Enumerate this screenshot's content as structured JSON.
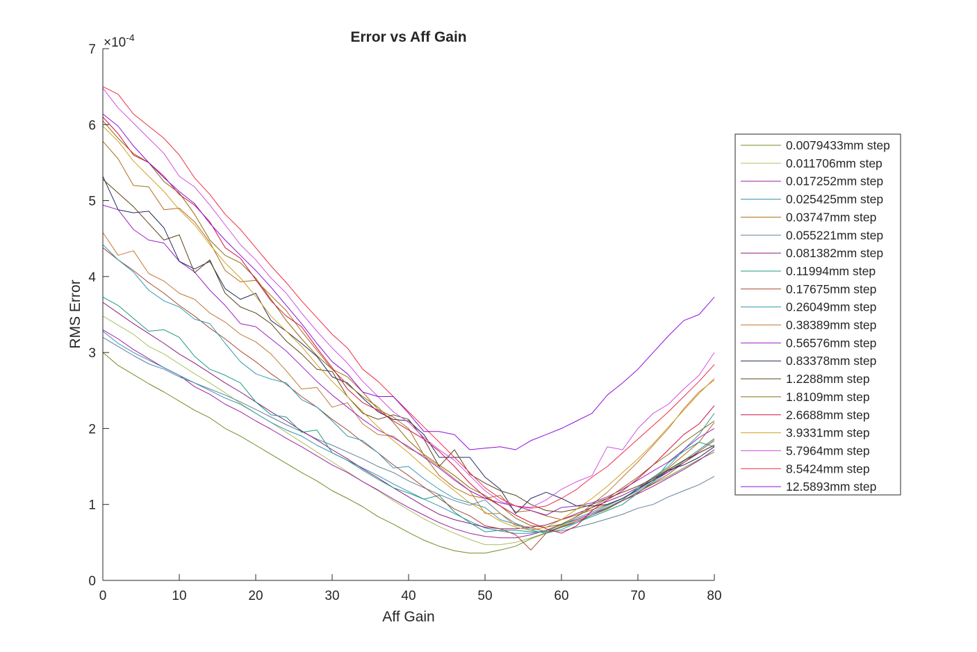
{
  "chart_data": {
    "type": "line",
    "title": "Error vs Aff Gain",
    "xlabel": "Aff Gain",
    "ylabel": "RMS Error",
    "y_exponent_label": "×10",
    "y_exponent": "-4",
    "xlim": [
      0,
      80
    ],
    "ylim": [
      0,
      7
    ],
    "xticks": [
      0,
      10,
      20,
      30,
      40,
      50,
      60,
      70,
      80
    ],
    "yticks": [
      0,
      1,
      2,
      3,
      4,
      5,
      6,
      7
    ],
    "y_scale_factor": 0.0001,
    "grid": false,
    "legend_position": "outside-right",
    "x": [
      0,
      2,
      4,
      6,
      8,
      10,
      12,
      14,
      16,
      18,
      20,
      22,
      24,
      26,
      28,
      30,
      32,
      34,
      36,
      38,
      40,
      42,
      44,
      46,
      48,
      50,
      52,
      54,
      56,
      58,
      60,
      62,
      64,
      66,
      68,
      70,
      72,
      74,
      76,
      78,
      80
    ],
    "series": [
      {
        "name": "0.0079433mm step",
        "color": "#6b8e23",
        "values": [
          3.0,
          2.83,
          2.71,
          2.59,
          2.48,
          2.36,
          2.24,
          2.14,
          2.0,
          1.9,
          1.78,
          1.66,
          1.54,
          1.42,
          1.31,
          1.18,
          1.08,
          0.97,
          0.84,
          0.74,
          0.63,
          0.53,
          0.45,
          0.39,
          0.36,
          0.36,
          0.4,
          0.45,
          0.55,
          0.62,
          0.71,
          0.78,
          0.86,
          0.95,
          1.05,
          1.16,
          1.27,
          1.37,
          1.48,
          1.59,
          1.69
        ]
      },
      {
        "name": "0.011706mm step",
        "color": "#a8c060",
        "values": [
          3.48,
          3.36,
          3.24,
          3.08,
          2.98,
          2.85,
          2.72,
          2.6,
          2.47,
          2.33,
          2.2,
          2.08,
          1.95,
          1.82,
          1.69,
          1.56,
          1.43,
          1.3,
          1.18,
          1.05,
          0.93,
          0.81,
          0.71,
          0.62,
          0.54,
          0.47,
          0.47,
          0.5,
          0.56,
          0.63,
          0.72,
          0.8,
          0.88,
          0.98,
          1.08,
          1.2,
          1.32,
          1.45,
          1.58,
          1.72,
          1.87
        ]
      },
      {
        "name": "0.017252mm step",
        "color": "#a020a0",
        "values": [
          3.3,
          3.18,
          3.04,
          2.92,
          2.8,
          2.7,
          2.55,
          2.45,
          2.32,
          2.22,
          2.1,
          1.99,
          1.87,
          1.76,
          1.64,
          1.52,
          1.42,
          1.3,
          1.19,
          1.07,
          0.96,
          0.86,
          0.76,
          0.68,
          0.62,
          0.58,
          0.56,
          0.56,
          0.6,
          0.66,
          0.74,
          0.8,
          0.88,
          0.96,
          1.05,
          1.14,
          1.24,
          1.35,
          1.46,
          1.58,
          1.72
        ]
      },
      {
        "name": "0.025425mm step",
        "color": "#3a8fb8",
        "values": [
          3.28,
          3.12,
          3.0,
          2.9,
          2.8,
          2.7,
          2.6,
          2.5,
          2.4,
          2.32,
          2.2,
          2.08,
          1.98,
          1.9,
          1.78,
          1.68,
          1.58,
          1.48,
          1.38,
          1.27,
          1.17,
          1.07,
          0.98,
          0.88,
          0.78,
          0.69,
          0.65,
          0.62,
          0.62,
          0.66,
          0.73,
          0.82,
          0.9,
          0.99,
          1.08,
          1.18,
          1.3,
          1.43,
          1.57,
          1.72,
          1.86
        ]
      },
      {
        "name": "0.03747mm step",
        "color": "#b06a1c",
        "values": [
          5.78,
          5.55,
          5.2,
          5.18,
          4.88,
          4.9,
          4.72,
          4.45,
          4.08,
          3.93,
          3.95,
          3.75,
          3.55,
          3.28,
          3.03,
          2.78,
          2.68,
          2.48,
          2.25,
          2.15,
          2.0,
          1.65,
          1.38,
          1.22,
          1.12,
          1.08,
          1.12,
          0.9,
          0.92,
          0.85,
          0.8,
          0.86,
          0.93,
          1.0,
          1.08,
          1.2,
          1.35,
          1.48,
          1.65,
          1.82,
          2.08
        ]
      },
      {
        "name": "0.055221mm step",
        "color": "#60809c",
        "values": [
          3.2,
          3.08,
          2.96,
          2.85,
          2.78,
          2.68,
          2.6,
          2.52,
          2.44,
          2.35,
          2.25,
          2.15,
          2.05,
          1.96,
          1.86,
          1.78,
          1.69,
          1.6,
          1.5,
          1.42,
          1.31,
          1.22,
          1.13,
          1.05,
          0.99,
          1.06,
          0.88,
          0.75,
          0.68,
          0.65,
          0.65,
          0.7,
          0.75,
          0.81,
          0.87,
          0.95,
          1.0,
          1.1,
          1.18,
          1.26,
          1.37
        ]
      },
      {
        "name": "0.081382mm step",
        "color": "#8a1a7e",
        "values": [
          3.66,
          3.52,
          3.38,
          3.25,
          3.12,
          2.98,
          2.86,
          2.73,
          2.6,
          2.48,
          2.35,
          2.22,
          2.1,
          1.97,
          1.85,
          1.72,
          1.6,
          1.47,
          1.35,
          1.22,
          1.1,
          0.98,
          0.87,
          0.8,
          0.75,
          0.7,
          0.68,
          0.68,
          0.7,
          0.73,
          0.8,
          0.88,
          0.96,
          1.04,
          1.12,
          1.22,
          1.32,
          1.43,
          1.55,
          1.68,
          1.78
        ]
      },
      {
        "name": "0.11994mm step",
        "color": "#1a9a80",
        "values": [
          3.73,
          3.62,
          3.45,
          3.28,
          3.3,
          3.2,
          2.95,
          2.78,
          2.7,
          2.6,
          2.35,
          2.18,
          2.15,
          1.95,
          1.98,
          1.68,
          1.58,
          1.45,
          1.33,
          1.22,
          1.15,
          1.07,
          1.12,
          0.9,
          0.76,
          0.64,
          0.66,
          0.66,
          0.64,
          0.64,
          0.7,
          0.76,
          0.84,
          0.92,
          1.0,
          1.15,
          1.3,
          1.55,
          1.7,
          1.82,
          1.76
        ]
      },
      {
        "name": "0.17675mm step",
        "color": "#a84830",
        "values": [
          4.38,
          4.22,
          4.08,
          3.92,
          3.78,
          3.62,
          3.48,
          3.32,
          3.18,
          3.02,
          2.88,
          2.72,
          2.58,
          2.42,
          2.28,
          2.12,
          1.98,
          1.82,
          1.68,
          1.52,
          1.38,
          1.23,
          1.08,
          0.94,
          0.85,
          0.72,
          0.68,
          0.6,
          0.4,
          0.62,
          0.7,
          0.78,
          0.86,
          0.94,
          1.05,
          1.16,
          1.28,
          1.4,
          1.55,
          1.7,
          1.84
        ]
      },
      {
        "name": "0.26049mm step",
        "color": "#309ab0",
        "values": [
          4.42,
          4.22,
          4.06,
          3.82,
          3.68,
          3.6,
          3.44,
          3.38,
          3.12,
          2.88,
          2.72,
          2.65,
          2.6,
          2.38,
          2.28,
          2.1,
          1.9,
          1.84,
          1.68,
          1.48,
          1.5,
          1.34,
          1.2,
          1.08,
          1.02,
          0.96,
          0.8,
          0.74,
          0.66,
          0.62,
          0.67,
          0.76,
          0.86,
          0.96,
          1.06,
          1.22,
          1.36,
          1.5,
          1.72,
          1.92,
          2.2
        ]
      },
      {
        "name": "0.38389mm step",
        "color": "#c07838",
        "values": [
          4.58,
          4.28,
          4.34,
          4.04,
          3.94,
          3.78,
          3.7,
          3.52,
          3.4,
          3.24,
          3.14,
          2.98,
          2.76,
          2.52,
          2.54,
          2.28,
          2.34,
          2.06,
          1.92,
          1.9,
          1.74,
          1.64,
          1.5,
          1.34,
          1.18,
          0.88,
          0.88,
          0.72,
          0.7,
          0.64,
          0.74,
          0.84,
          1.0,
          1.16,
          1.36,
          1.56,
          1.78,
          2.0,
          2.26,
          2.48,
          2.64
        ]
      },
      {
        "name": "0.56576mm step",
        "color": "#9a20c0",
        "values": [
          4.94,
          4.88,
          4.62,
          4.48,
          4.44,
          4.2,
          4.06,
          3.82,
          3.62,
          3.38,
          3.34,
          3.18,
          3.02,
          2.82,
          2.62,
          2.44,
          2.28,
          2.12,
          1.98,
          1.88,
          1.76,
          1.62,
          1.48,
          1.32,
          1.18,
          1.08,
          1.02,
          0.98,
          0.92,
          0.86,
          0.96,
          0.98,
          1.02,
          1.1,
          1.2,
          1.32,
          1.44,
          1.56,
          1.72,
          1.88,
          2.0
        ]
      },
      {
        "name": "0.83378mm step",
        "color": "#202a60",
        "values": [
          5.32,
          4.88,
          4.84,
          4.86,
          4.64,
          4.2,
          4.1,
          4.2,
          3.84,
          3.7,
          3.78,
          3.42,
          3.28,
          3.12,
          2.95,
          2.68,
          2.6,
          2.4,
          2.22,
          2.12,
          2.1,
          1.92,
          1.62,
          1.62,
          1.62,
          1.36,
          1.2,
          0.88,
          1.08,
          1.16,
          1.08,
          0.98,
          0.98,
          1.0,
          1.08,
          1.2,
          1.32,
          1.45,
          1.52,
          1.62,
          1.76
        ]
      },
      {
        "name": "1.2288mm step",
        "color": "#5a4016",
        "values": [
          5.28,
          5.1,
          4.92,
          4.7,
          4.48,
          4.55,
          4.05,
          4.22,
          3.78,
          3.6,
          3.52,
          3.38,
          3.15,
          2.98,
          2.78,
          2.75,
          2.42,
          2.2,
          2.12,
          2.18,
          2.12,
          1.86,
          1.5,
          1.72,
          1.4,
          1.28,
          1.18,
          1.12,
          1.0,
          0.92,
          0.9,
          0.94,
          1.0,
          1.08,
          1.16,
          1.24,
          1.34,
          1.46,
          1.58,
          1.68,
          1.78
        ]
      },
      {
        "name": "1.8109mm step",
        "color": "#8a6a10",
        "values": [
          6.05,
          5.82,
          5.62,
          5.5,
          5.25,
          5.1,
          4.82,
          4.48,
          4.28,
          4.18,
          3.98,
          3.7,
          3.42,
          3.18,
          2.96,
          2.78,
          2.58,
          2.42,
          2.28,
          2.08,
          1.84,
          1.66,
          1.52,
          1.38,
          1.22,
          1.12,
          0.98,
          0.82,
          0.72,
          0.7,
          0.74,
          0.84,
          0.96,
          1.08,
          1.22,
          1.36,
          1.52,
          1.66,
          1.82,
          1.96,
          2.1
        ]
      },
      {
        "name": "2.6688mm step",
        "color": "#d0103e",
        "values": [
          6.1,
          5.88,
          5.6,
          5.5,
          5.32,
          5.08,
          4.94,
          4.72,
          4.38,
          4.24,
          3.96,
          3.68,
          3.48,
          3.34,
          3.06,
          2.8,
          2.52,
          2.34,
          2.24,
          2.1,
          1.98,
          1.86,
          1.7,
          1.5,
          1.28,
          1.1,
          0.98,
          0.86,
          0.76,
          0.68,
          0.62,
          0.72,
          0.92,
          1.06,
          1.18,
          1.34,
          1.52,
          1.72,
          1.92,
          2.06,
          2.3
        ]
      },
      {
        "name": "3.9331mm step",
        "color": "#d0a020",
        "values": [
          5.98,
          5.78,
          5.52,
          5.32,
          5.12,
          4.88,
          4.68,
          4.42,
          4.18,
          3.98,
          3.74,
          3.48,
          3.28,
          3.08,
          2.84,
          2.62,
          2.42,
          2.22,
          2.02,
          1.84,
          1.68,
          1.5,
          1.34,
          1.18,
          1.02,
          0.9,
          0.78,
          0.7,
          0.66,
          0.7,
          0.8,
          0.94,
          1.08,
          1.24,
          1.42,
          1.6,
          1.8,
          2.02,
          2.24,
          2.46,
          2.66
        ]
      },
      {
        "name": "5.7964mm step",
        "color": "#d050e0",
        "values": [
          6.48,
          6.22,
          6.02,
          5.82,
          5.62,
          5.32,
          5.18,
          4.94,
          4.68,
          4.42,
          4.22,
          3.98,
          3.78,
          3.52,
          3.28,
          3.06,
          2.86,
          2.62,
          2.42,
          2.22,
          2.08,
          1.88,
          1.72,
          1.58,
          1.38,
          1.18,
          1.04,
          0.98,
          0.96,
          1.06,
          1.2,
          1.3,
          1.38,
          1.76,
          1.72,
          2.0,
          2.2,
          2.32,
          2.52,
          2.7,
          3.0
        ]
      },
      {
        "name": "8.5424mm step",
        "color": "#f02a44",
        "values": [
          6.5,
          6.4,
          6.14,
          5.98,
          5.82,
          5.6,
          5.3,
          5.08,
          4.82,
          4.62,
          4.38,
          4.14,
          3.92,
          3.68,
          3.46,
          3.24,
          3.06,
          2.78,
          2.62,
          2.42,
          2.22,
          2.02,
          1.82,
          1.62,
          1.42,
          1.22,
          1.08,
          0.98,
          0.95,
          0.98,
          1.08,
          1.2,
          1.36,
          1.5,
          1.68,
          1.86,
          2.04,
          2.22,
          2.42,
          2.62,
          2.84
        ]
      },
      {
        "name": "12.5893mm step",
        "color": "#8a10d8",
        "values": [
          6.14,
          5.98,
          5.72,
          5.5,
          5.3,
          5.12,
          4.96,
          4.7,
          4.48,
          4.28,
          4.08,
          3.86,
          3.62,
          3.38,
          3.12,
          2.88,
          2.72,
          2.48,
          2.42,
          2.42,
          2.2,
          1.96,
          1.96,
          1.92,
          1.72,
          1.74,
          1.76,
          1.72,
          1.84,
          1.92,
          2.0,
          2.1,
          2.2,
          2.44,
          2.6,
          2.78,
          3.0,
          3.22,
          3.42,
          3.5,
          3.73
        ]
      }
    ]
  }
}
